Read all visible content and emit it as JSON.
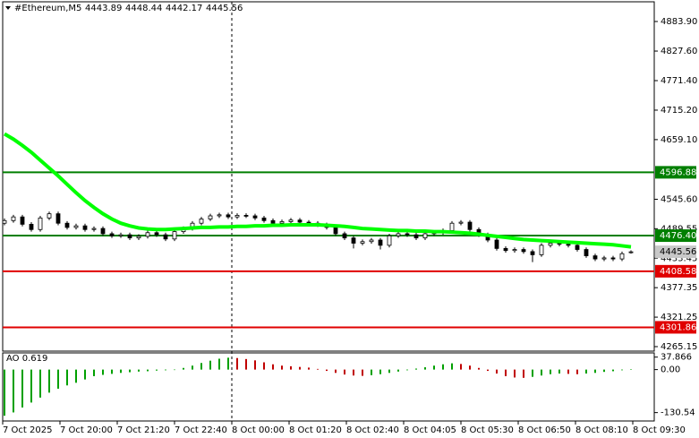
{
  "chart_data": {
    "type": "candlestick",
    "title": "#Ethereum,M5",
    "ohlc": [
      4443.89,
      4448.44,
      4442.17,
      4445.56
    ],
    "ylim": [
      4256.6,
      4921.4
    ],
    "yticks": [
      {
        "value": 4883.9,
        "label": "4883.90"
      },
      {
        "value": 4827.6,
        "label": "4827.60"
      },
      {
        "value": 4771.4,
        "label": "4771.40"
      },
      {
        "value": 4715.2,
        "label": "4715.20"
      },
      {
        "value": 4659.1,
        "label": "4659.10"
      },
      {
        "value": 4545.6,
        "label": "4545.60"
      },
      4489.55,
      4433.45,
      4377.35,
      4321.25,
      4265.15
    ],
    "x_labels": [
      "7 Oct 2025",
      "7 Oct 20:00",
      "7 Oct 21:20",
      "7 Oct 22:40",
      "8 Oct 00:00",
      "8 Oct 01:20",
      "8 Oct 02:40",
      "8 Oct 04:05",
      "8 Oct 05:30",
      "8 Oct 06:50",
      "8 Oct 08:10",
      "8 Oct 09:30"
    ],
    "open": [
      4500,
      4505,
      4512,
      4498,
      4488,
      4510,
      4518,
      4500,
      4492,
      4495,
      4488,
      4490,
      4480,
      4476,
      4478,
      4472,
      4475,
      4482,
      4478,
      4470,
      4484,
      4490,
      4500,
      4508,
      4514,
      4516,
      4512,
      4515,
      4514,
      4510,
      4505,
      4500,
      4503,
      4506,
      4502,
      4500,
      4497,
      4492,
      4480,
      4472,
      4462,
      4465,
      4468,
      4458,
      4476,
      4480,
      4478,
      4472,
      4480,
      4482,
      4486,
      4500,
      4502,
      4488,
      4478,
      4468,
      4452,
      4448,
      4450,
      4446,
      4440,
      4458,
      4462,
      4460,
      4458,
      4450,
      4438,
      4432,
      4434,
      4432,
      4443.89
    ],
    "high": [
      4509,
      4516,
      4516,
      4502,
      4514,
      4522,
      4522,
      4504,
      4499,
      4499,
      4494,
      4494,
      4484,
      4482,
      4482,
      4479,
      4486,
      4486,
      4482,
      4488,
      4494,
      4504,
      4512,
      4518,
      4520,
      4520,
      4519,
      4519,
      4518,
      4514,
      4509,
      4507,
      4510,
      4510,
      4506,
      4504,
      4501,
      4496,
      4484,
      4476,
      4469,
      4472,
      4472,
      4480,
      4484,
      4484,
      4482,
      4484,
      4486,
      4490,
      4504,
      4506,
      4506,
      4492,
      4482,
      4472,
      4456,
      4454,
      4454,
      4450,
      4462,
      4466,
      4466,
      4464,
      4462,
      4454,
      4442,
      4438,
      4438,
      4446,
      4448.44
    ],
    "low": [
      4496,
      4501,
      4494,
      4484,
      4484,
      4506,
      4496,
      4488,
      4488,
      4484,
      4484,
      4476,
      4472,
      4472,
      4468,
      4468,
      4471,
      4474,
      4466,
      4466,
      4480,
      4486,
      4496,
      4504,
      4510,
      4508,
      4508,
      4510,
      4506,
      4501,
      4496,
      4496,
      4499,
      4498,
      4496,
      4493,
      4488,
      4476,
      4468,
      4452,
      4458,
      4461,
      4450,
      4454,
      4472,
      4474,
      4468,
      4468,
      4476,
      4478,
      4482,
      4496,
      4484,
      4474,
      4464,
      4448,
      4444,
      4444,
      4442,
      4426,
      4436,
      4454,
      4456,
      4454,
      4446,
      4434,
      4428,
      4428,
      4428,
      4428,
      4442.17
    ],
    "close": [
      4505,
      4512,
      4498,
      4488,
      4510,
      4518,
      4500,
      4492,
      4495,
      4488,
      4490,
      4480,
      4476,
      4478,
      4472,
      4475,
      4482,
      4478,
      4470,
      4484,
      4490,
      4500,
      4508,
      4514,
      4516,
      4512,
      4515,
      4514,
      4510,
      4505,
      4500,
      4503,
      4506,
      4502,
      4500,
      4497,
      4492,
      4480,
      4472,
      4462,
      4465,
      4468,
      4458,
      4476,
      4480,
      4478,
      4472,
      4480,
      4482,
      4486,
      4500,
      4502,
      4488,
      4478,
      4468,
      4452,
      4448,
      4450,
      4446,
      4440,
      4458,
      4462,
      4460,
      4458,
      4450,
      4438,
      4432,
      4434,
      4432,
      4442,
      4445.56
    ],
    "ma": {
      "color": "#00ff00",
      "values": [
        4670,
        4660,
        4648,
        4635,
        4620,
        4605,
        4590,
        4574,
        4558,
        4543,
        4530,
        4518,
        4508,
        4500,
        4495,
        4491,
        4489,
        4488,
        4488,
        4489,
        4490,
        4491,
        4492,
        4492,
        4493,
        4493,
        4494,
        4494,
        4495,
        4495,
        4496,
        4496,
        4497,
        4497,
        4497,
        4497,
        4496,
        4495,
        4494,
        4492,
        4490,
        4489,
        4488,
        4487,
        4486,
        4486,
        4485,
        4485,
        4484,
        4484,
        4483,
        4482,
        4481,
        4479,
        4477,
        4475,
        4473,
        4471,
        4469,
        4468,
        4467,
        4466,
        4465,
        4464,
        4463,
        4462,
        4461,
        4460,
        4459,
        4457,
        4455
      ]
    },
    "levels": [
      {
        "value": 4596.88,
        "color": "#007f00"
      },
      {
        "value": 4476.4,
        "label": "4476.40",
        "color": "#007f00"
      },
      {
        "value": 4408.58,
        "color": "#e00000"
      },
      {
        "value": 4301.86,
        "color": "#e00000"
      }
    ],
    "current_price": 4445.56,
    "ao": {
      "title": "AO 0.619",
      "ylim": [
        -156,
        50.6
      ],
      "yticks": [
        37.866,
        {
          "value": 0,
          "label": "0.00"
        },
        -130.54
      ],
      "up_color": "#00a000",
      "down_color": "#c00000",
      "values": [
        -140,
        -130,
        -115,
        -100,
        -85,
        -70,
        -58,
        -48,
        -40,
        -30,
        -20,
        -16,
        -13,
        -10,
        -8,
        -6,
        -5,
        -3,
        -2,
        0,
        5,
        12,
        20,
        27,
        33,
        36,
        35,
        32,
        28,
        22,
        16,
        12,
        10,
        8,
        6,
        2,
        -4,
        -10,
        -15,
        -18,
        -19,
        -17,
        -14,
        -10,
        -6,
        -2,
        3,
        7,
        12,
        16,
        19,
        17,
        12,
        5,
        -4,
        -12,
        -20,
        -24,
        -25,
        -22,
        -18,
        -14,
        -12,
        -13,
        -14,
        -12,
        -10,
        -7,
        -5,
        -2,
        0.619
      ]
    }
  }
}
